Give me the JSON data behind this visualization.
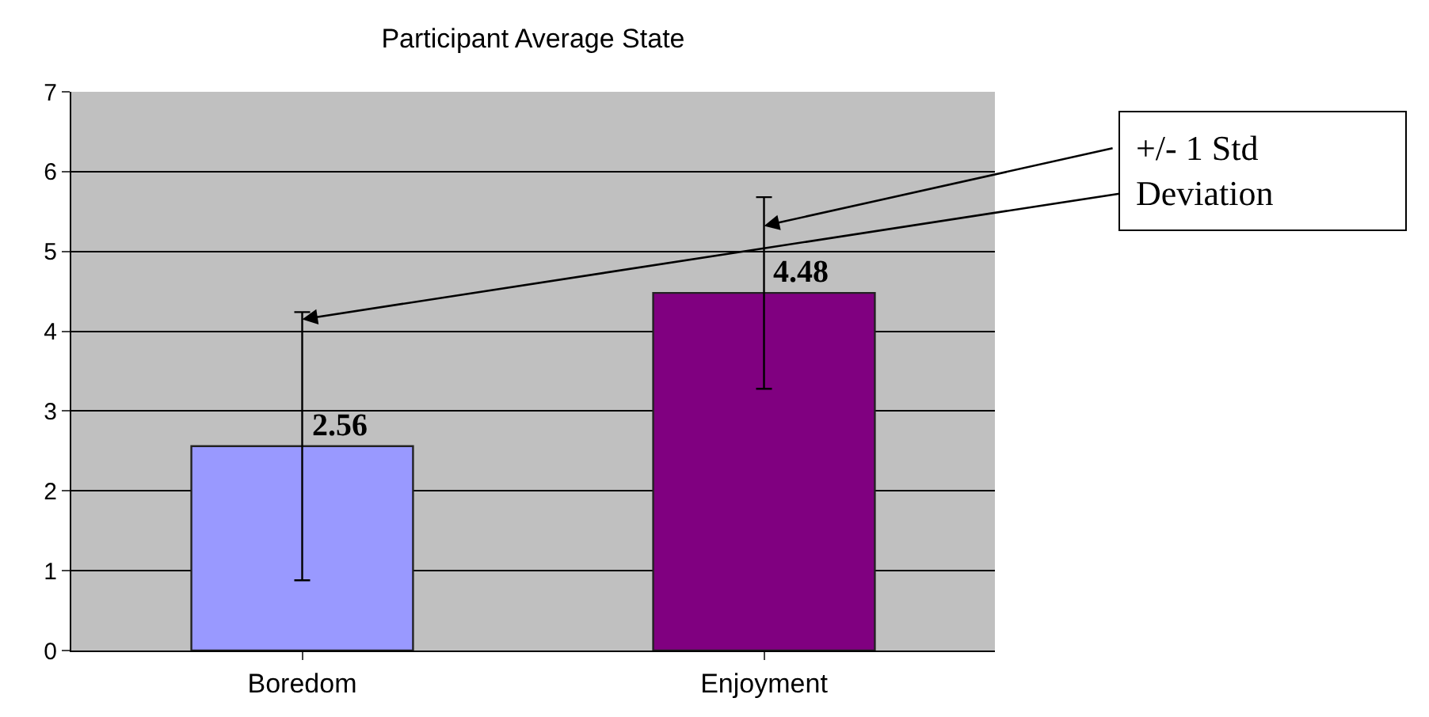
{
  "chart_data": {
    "type": "bar",
    "title": "Participant Average State",
    "categories": [
      "Boredom",
      "Enjoyment"
    ],
    "values": [
      2.56,
      4.48
    ],
    "colors": [
      "#9999ff",
      "#800080"
    ],
    "errors": [
      1.68,
      1.2
    ],
    "data_labels": true,
    "ylim": [
      0,
      7
    ],
    "yticks": [
      0,
      1,
      2,
      3,
      4,
      5,
      6,
      7
    ],
    "grid": "y",
    "annotations": [
      {
        "text": "+/- 1 Std Deviation",
        "x": "Boredom",
        "y": 4.15
      }
    ]
  }
}
